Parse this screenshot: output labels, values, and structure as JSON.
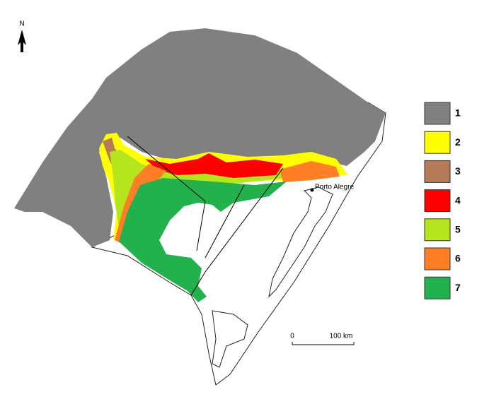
{
  "north_arrow": {
    "label": "N"
  },
  "places": [
    {
      "label": "Porto Alegre"
    }
  ],
  "scale_bar": {
    "start_label": "0",
    "end_label": "100 km"
  },
  "legend": {
    "items": [
      {
        "label": "1",
        "color": "#808080"
      },
      {
        "label": "2",
        "color": "#ffff00"
      },
      {
        "label": "3",
        "color": "#b57a58"
      },
      {
        "label": "4",
        "color": "#ff0000"
      },
      {
        "label": "5",
        "color": "#b5e61d"
      },
      {
        "label": "6",
        "color": "#ff7f27"
      },
      {
        "label": "7",
        "color": "#22b14c"
      }
    ]
  }
}
